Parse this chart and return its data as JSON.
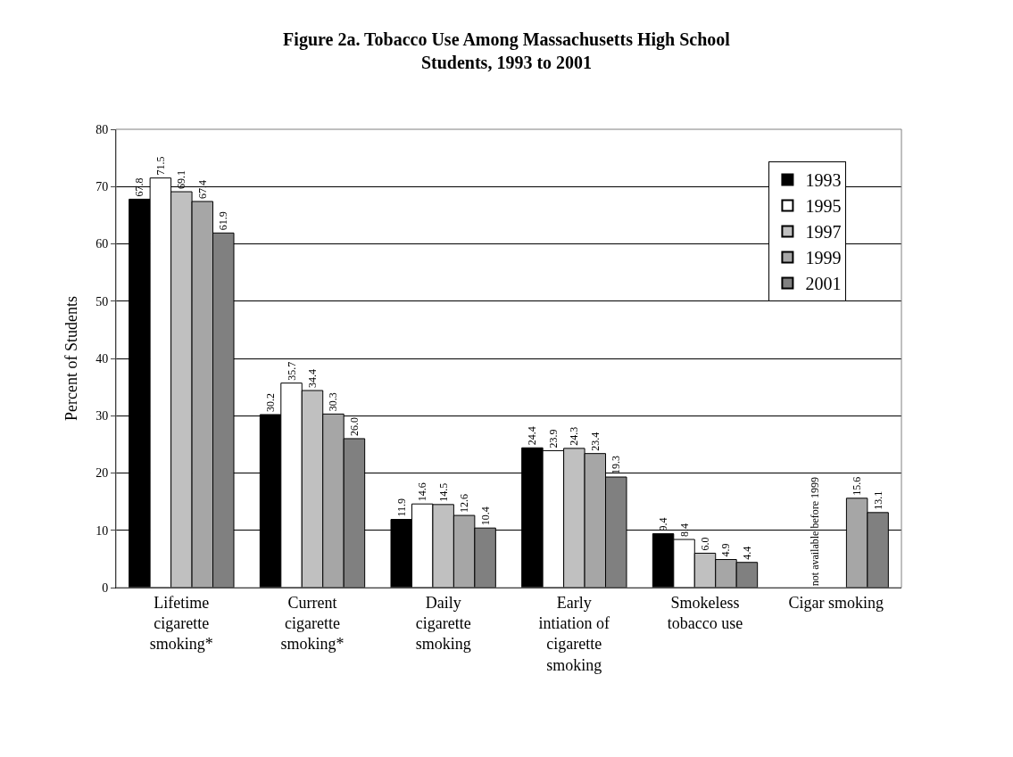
{
  "chart_data": {
    "type": "bar",
    "title": "Figure 2a. Tobacco Use Among Massachusetts High School Students, 1993 to 2001",
    "ylabel": "Percent of Students",
    "categories": [
      "Lifetime cigarette smoking*",
      "Current cigarette smoking*",
      "Daily cigarette smoking",
      "Early intiation of cigarette smoking",
      "Smokeless tobacco use",
      "Cigar smoking"
    ],
    "series": [
      {
        "name": "1993",
        "color": "#000000",
        "values": [
          67.8,
          30.2,
          11.9,
          24.4,
          9.4,
          null
        ],
        "value_labels": [
          "67.8",
          "30.2",
          "11.9",
          "24.4",
          "9.4",
          null
        ]
      },
      {
        "name": "1995",
        "color": "#ffffff",
        "values": [
          71.5,
          35.7,
          14.6,
          23.9,
          8.4,
          null
        ],
        "value_labels": [
          "71.5",
          "35.7",
          "14.6",
          "23.9",
          "8.4",
          null
        ]
      },
      {
        "name": "1997",
        "color": "#c0c0c0",
        "values": [
          69.1,
          34.4,
          14.5,
          24.3,
          6.0,
          null
        ],
        "value_labels": [
          "69.1",
          "34.4",
          "14.5",
          "24.3",
          "6.0",
          null
        ]
      },
      {
        "name": "1999",
        "color": "#a6a6a6",
        "values": [
          67.4,
          30.3,
          12.6,
          23.4,
          4.9,
          15.6
        ],
        "value_labels": [
          "67.4",
          "30.3",
          "12.6",
          "23.4",
          "4.9",
          "15.6"
        ]
      },
      {
        "name": "2001",
        "color": "#808080",
        "values": [
          61.9,
          26.0,
          10.4,
          19.3,
          4.4,
          13.1
        ],
        "value_labels": [
          "61.9",
          "26.0",
          "10.4",
          "19.3",
          "4.4",
          "13.1"
        ]
      }
    ],
    "annotations": [
      "not available before 1999"
    ],
    "ylim": [
      0,
      80
    ],
    "yticks": [
      0,
      10,
      20,
      30,
      40,
      50,
      60,
      70,
      80
    ],
    "grid": "y",
    "legend": "top right"
  }
}
